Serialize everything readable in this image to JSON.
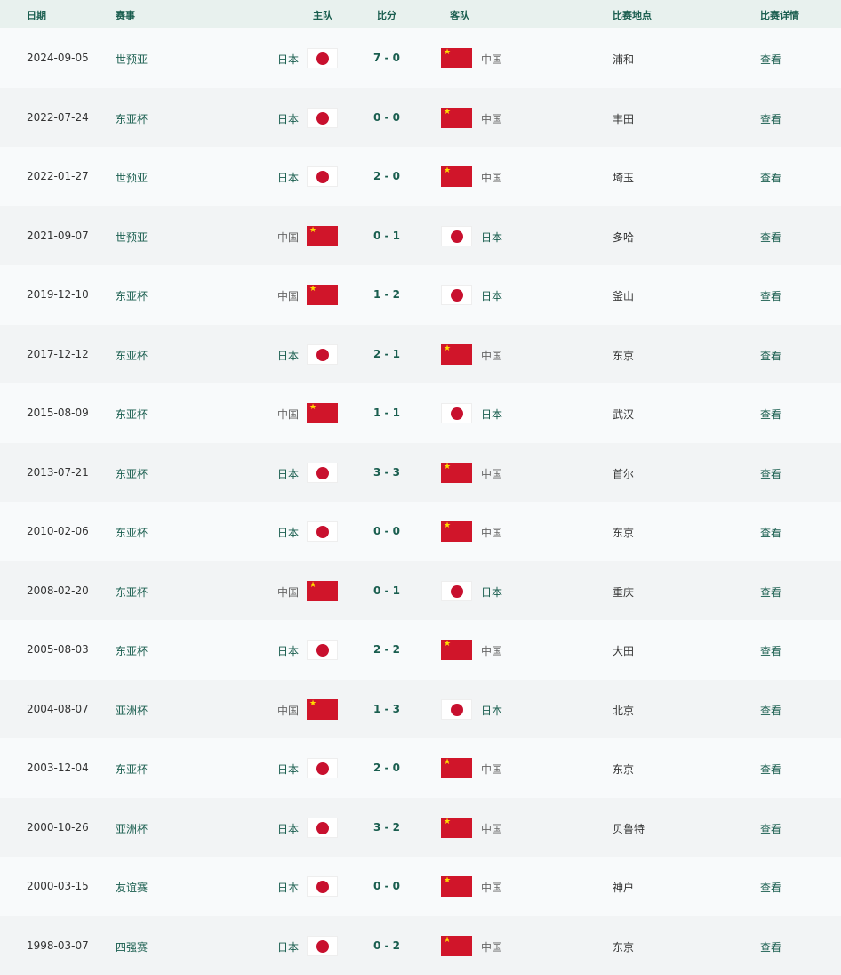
{
  "header": {
    "date": "日期",
    "competition": "赛事",
    "home": "主队",
    "score": "比分",
    "away": "客队",
    "venue": "比赛地点",
    "details": "比赛详情"
  },
  "colors": {
    "accent": "#1a5e4f",
    "header_bg": "#e8f1ee"
  },
  "matches": [
    {
      "date": "2024-09-05",
      "competition": "世预亚",
      "home": "日本",
      "score": "7 - 0",
      "away": "中国",
      "venue": "浦和",
      "details": "查看"
    },
    {
      "date": "2022-07-24",
      "competition": "东亚杯",
      "home": "日本",
      "score": "0 - 0",
      "away": "中国",
      "venue": "丰田",
      "details": "查看"
    },
    {
      "date": "2022-01-27",
      "competition": "世预亚",
      "home": "日本",
      "score": "2 - 0",
      "away": "中国",
      "venue": "埼玉",
      "details": "查看"
    },
    {
      "date": "2021-09-07",
      "competition": "世预亚",
      "home": "中国",
      "score": "0 - 1",
      "away": "日本",
      "venue": "多哈",
      "details": "查看"
    },
    {
      "date": "2019-12-10",
      "competition": "东亚杯",
      "home": "中国",
      "score": "1 - 2",
      "away": "日本",
      "venue": "釜山",
      "details": "查看"
    },
    {
      "date": "2017-12-12",
      "competition": "东亚杯",
      "home": "日本",
      "score": "2 - 1",
      "away": "中国",
      "venue": "东京",
      "details": "查看"
    },
    {
      "date": "2015-08-09",
      "competition": "东亚杯",
      "home": "中国",
      "score": "1 - 1",
      "away": "日本",
      "venue": "武汉",
      "details": "查看"
    },
    {
      "date": "2013-07-21",
      "competition": "东亚杯",
      "home": "日本",
      "score": "3 - 3",
      "away": "中国",
      "venue": "首尔",
      "details": "查看"
    },
    {
      "date": "2010-02-06",
      "competition": "东亚杯",
      "home": "日本",
      "score": "0 - 0",
      "away": "中国",
      "venue": "东京",
      "details": "查看"
    },
    {
      "date": "2008-02-20",
      "competition": "东亚杯",
      "home": "中国",
      "score": "0 - 1",
      "away": "日本",
      "venue": "重庆",
      "details": "查看"
    },
    {
      "date": "2005-08-03",
      "competition": "东亚杯",
      "home": "日本",
      "score": "2 - 2",
      "away": "中国",
      "venue": "大田",
      "details": "查看"
    },
    {
      "date": "2004-08-07",
      "competition": "亚洲杯",
      "home": "中国",
      "score": "1 - 3",
      "away": "日本",
      "venue": "北京",
      "details": "查看"
    },
    {
      "date": "2003-12-04",
      "competition": "东亚杯",
      "home": "日本",
      "score": "2 - 0",
      "away": "中国",
      "venue": "东京",
      "details": "查看"
    },
    {
      "date": "2000-10-26",
      "competition": "亚洲杯",
      "home": "日本",
      "score": "3 - 2",
      "away": "中国",
      "venue": "贝鲁特",
      "details": "查看"
    },
    {
      "date": "2000-03-15",
      "competition": "友谊赛",
      "home": "日本",
      "score": "0 - 0",
      "away": "中国",
      "venue": "神户",
      "details": "查看"
    },
    {
      "date": "1998-03-07",
      "competition": "四强赛",
      "home": "日本",
      "score": "0 - 2",
      "away": "中国",
      "venue": "东京",
      "details": "查看"
    }
  ]
}
